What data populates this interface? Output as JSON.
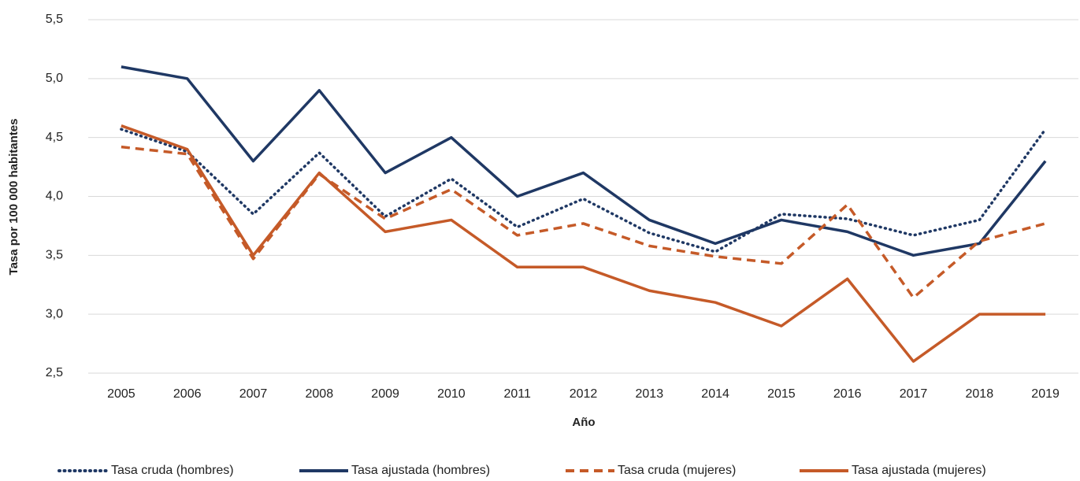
{
  "chart_data": {
    "type": "line",
    "x_label": "Año",
    "y_label": "Tasa por 100 000 habitantes",
    "categories": [
      "2005",
      "2006",
      "2007",
      "2008",
      "2009",
      "2010",
      "2011",
      "2012",
      "2013",
      "2014",
      "2015",
      "2016",
      "2017",
      "2018",
      "2019"
    ],
    "series": [
      {
        "name": "Tasa cruda (hombres)",
        "color": "#1f3864",
        "line_style": "dotted",
        "values": [
          4.57,
          4.38,
          3.85,
          4.37,
          3.83,
          4.15,
          3.74,
          3.98,
          3.69,
          3.53,
          3.85,
          3.81,
          3.67,
          3.8,
          4.57
        ]
      },
      {
        "name": "Tasa ajustada (hombres)",
        "color": "#1f3864",
        "line_style": "solid",
        "values": [
          5.1,
          5.0,
          4.3,
          4.9,
          4.2,
          4.5,
          4.0,
          4.2,
          3.8,
          3.6,
          3.8,
          3.7,
          3.5,
          3.6,
          4.3
        ]
      },
      {
        "name": "Tasa cruda (mujeres)",
        "color": "#c55a28",
        "line_style": "dashed",
        "values": [
          4.42,
          4.36,
          3.47,
          4.19,
          3.81,
          4.06,
          3.67,
          3.77,
          3.58,
          3.49,
          3.43,
          3.93,
          3.14,
          3.62,
          3.77
        ]
      },
      {
        "name": "Tasa ajustada (mujeres)",
        "color": "#c55a28",
        "line_style": "solid",
        "values": [
          4.6,
          4.4,
          3.5,
          4.2,
          3.7,
          3.8,
          3.4,
          3.4,
          3.2,
          3.1,
          2.9,
          3.3,
          2.6,
          3.0,
          3.0
        ]
      }
    ],
    "ylim": [
      2.5,
      5.5
    ],
    "yticks": [
      {
        "value": 2.5,
        "label": "2,5"
      },
      {
        "value": 3.0,
        "label": "3,0"
      },
      {
        "value": 3.5,
        "label": "3,5"
      },
      {
        "value": 4.0,
        "label": "4,0"
      },
      {
        "value": 4.5,
        "label": "4,5"
      },
      {
        "value": 5.0,
        "label": "5,0"
      },
      {
        "value": 5.5,
        "label": "5,5"
      }
    ],
    "grid": true,
    "legend": "bottom"
  }
}
